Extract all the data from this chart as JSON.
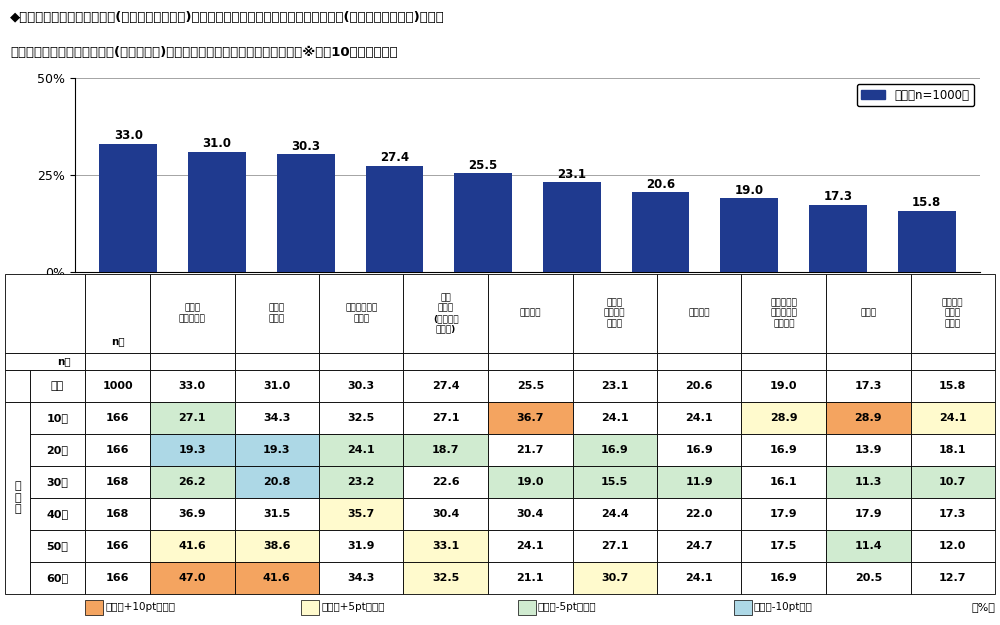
{
  "title_line1": "◆宇宙旅行で超大型宇宙施設(宇宙ステーション)に長期滞在するとしたら、超大型宇宙施設(宇宙ステーション)には、",
  "title_line2": "　どのような施設やサービス(ホテル除く)があってほしいか　［複数回答形式］※上位10位までを表示",
  "values": [
    33.0,
    31.0,
    30.3,
    27.4,
    25.5,
    23.1,
    20.6,
    19.0,
    17.3,
    15.8
  ],
  "bar_color": "#1f3a8f",
  "ylim": [
    0,
    50
  ],
  "ytick_labels": [
    "0%",
    "25%",
    "50%"
  ],
  "legend_label": "全体［n=1000］",
  "categories_header": [
    "病院・\nクリニック",
    "温泉・\n大浴場",
    "レストラン・\nカフェ",
    "展望\nデッキ\n(天体観測\nルーム)",
    "コンビニ",
    "薬局・\nドラッグ\nストア",
    "スーパー",
    "ショッピン\nグモール・\nデパート",
    "映画館",
    "遊園地・\nテーマ\nパーク"
  ],
  "row_labels": [
    "全体",
    "10代",
    "20代",
    "30代",
    "40代",
    "50代",
    "60代"
  ],
  "n_values": [
    1000,
    166,
    166,
    168,
    168,
    166,
    166
  ],
  "table_data": [
    [
      33.0,
      31.0,
      30.3,
      27.4,
      25.5,
      23.1,
      20.6,
      19.0,
      17.3,
      15.8
    ],
    [
      27.1,
      34.3,
      32.5,
      27.1,
      36.7,
      24.1,
      24.1,
      28.9,
      28.9,
      24.1
    ],
    [
      19.3,
      19.3,
      24.1,
      18.7,
      21.7,
      16.9,
      16.9,
      16.9,
      13.9,
      18.1
    ],
    [
      26.2,
      20.8,
      23.2,
      22.6,
      19.0,
      15.5,
      11.9,
      16.1,
      11.3,
      10.7
    ],
    [
      36.9,
      31.5,
      35.7,
      30.4,
      30.4,
      24.4,
      22.0,
      17.9,
      17.9,
      17.3
    ],
    [
      41.6,
      38.6,
      31.9,
      33.1,
      24.1,
      27.1,
      24.7,
      17.5,
      11.4,
      12.0
    ],
    [
      47.0,
      41.6,
      34.3,
      32.5,
      21.1,
      30.7,
      24.1,
      16.9,
      20.5,
      12.7
    ]
  ],
  "overall_values": [
    33.0,
    31.0,
    30.3,
    27.4,
    25.5,
    23.1,
    20.6,
    19.0,
    17.3,
    15.8
  ],
  "color_plus10": "#f4a460",
  "color_plus5": "#fffacd",
  "color_minus5": "#d0ebd0",
  "color_minus10": "#add8e6",
  "legend_footer": [
    "全体比+10pt以上／",
    "全体比+5pt以上／",
    "全体比-5pt以下／",
    "全体比-10pt以下"
  ],
  "legend_footer_colors": [
    "#f4a460",
    "#fffacd",
    "#d0ebd0",
    "#add8e6"
  ],
  "percent_label": "（%）"
}
